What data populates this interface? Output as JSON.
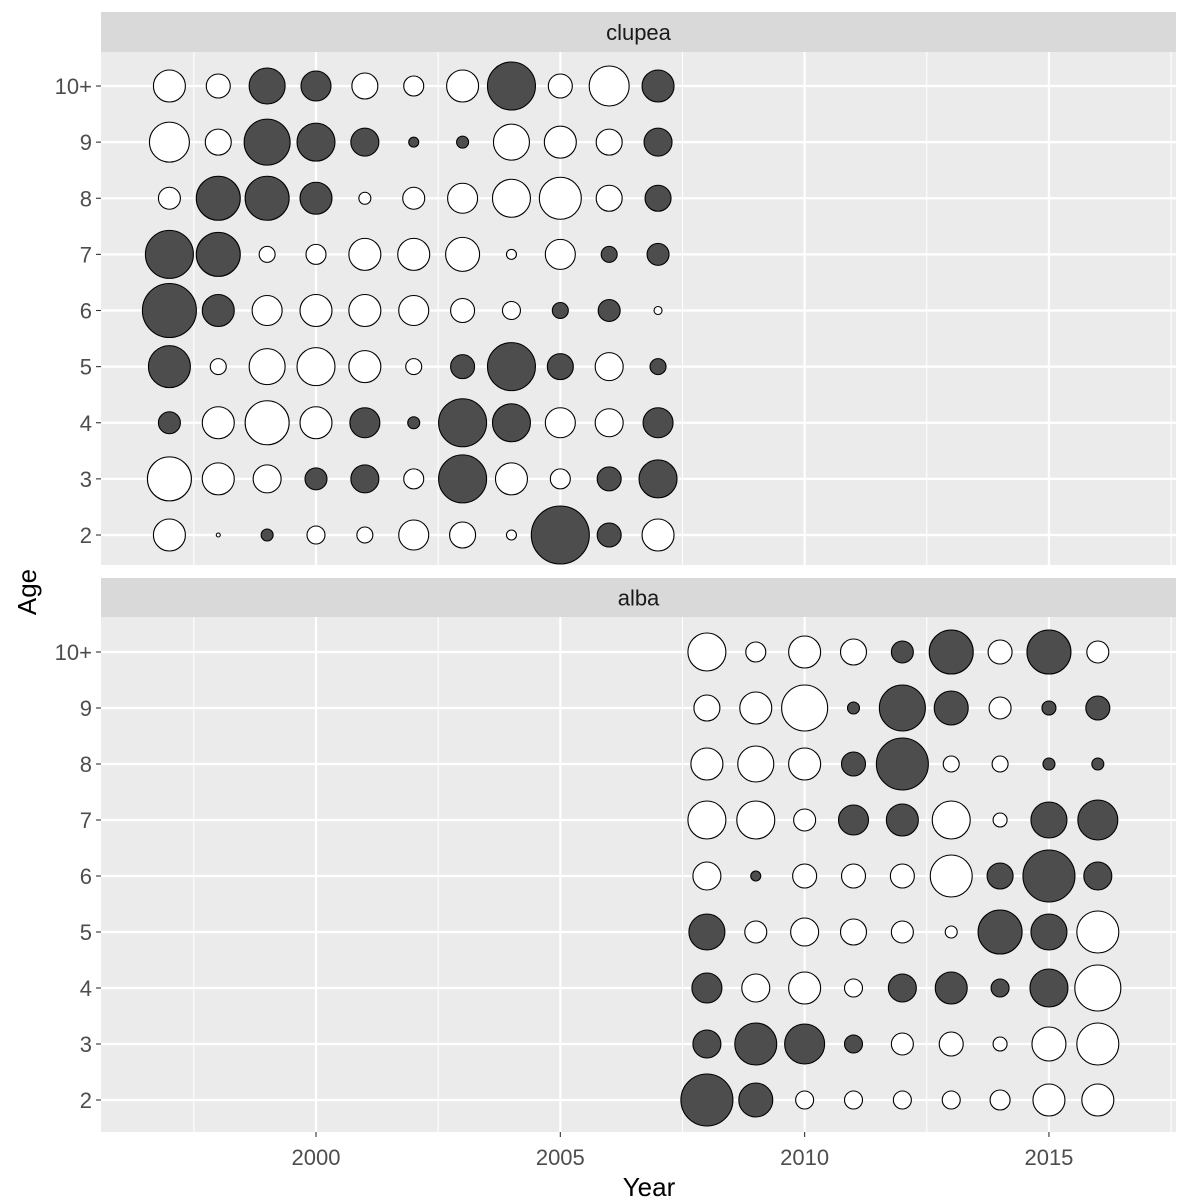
{
  "chart_data": {
    "type": "scatter",
    "subtype": "bubble",
    "xlabel": "Year",
    "ylabel": "Age",
    "xlim": [
      1995.6,
      2017.6
    ],
    "x_ticks": [
      2000,
      2005,
      2010,
      2015
    ],
    "x_minor": [
      1997.5,
      2002.5,
      2007.5,
      2012.5,
      2017.5
    ],
    "y_categories": [
      "2",
      "3",
      "4",
      "5",
      "6",
      "7",
      "8",
      "9",
      "10+"
    ],
    "colors": {
      "negative": "#4d4d4d",
      "positive": "#ffffff",
      "panel": "#ebebeb",
      "strip": "#d9d9d9"
    },
    "panels": [
      {
        "name": "clupea",
        "years": [
          1997,
          1998,
          1999,
          2000,
          2001,
          2002,
          2003,
          2004,
          2005,
          2006,
          2007
        ],
        "points": {
          "10+": [
            [
              16,
              1
            ],
            [
              12,
              1
            ],
            [
              18,
              -1
            ],
            [
              15,
              -1
            ],
            [
              13,
              1
            ],
            [
              10,
              1
            ],
            [
              16,
              1
            ],
            [
              24,
              -1
            ],
            [
              12,
              1
            ],
            [
              20,
              1
            ],
            [
              16,
              -1
            ]
          ],
          "9": [
            [
              20,
              1
            ],
            [
              13,
              1
            ],
            [
              23,
              -1
            ],
            [
              19,
              -1
            ],
            [
              14,
              -1
            ],
            [
              5,
              -1
            ],
            [
              6,
              -1
            ],
            [
              18,
              1
            ],
            [
              16,
              1
            ],
            [
              13,
              1
            ],
            [
              14,
              -1
            ]
          ],
          "8": [
            [
              11,
              1
            ],
            [
              22,
              -1
            ],
            [
              22,
              -1
            ],
            [
              16,
              -1
            ],
            [
              6,
              1
            ],
            [
              11,
              1
            ],
            [
              15,
              1
            ],
            [
              19,
              1
            ],
            [
              21,
              1
            ],
            [
              13,
              1
            ],
            [
              13,
              -1
            ]
          ],
          "7": [
            [
              24,
              -1
            ],
            [
              22,
              -1
            ],
            [
              8,
              1
            ],
            [
              10,
              1
            ],
            [
              16,
              1
            ],
            [
              16,
              1
            ],
            [
              17,
              1
            ],
            [
              5,
              1
            ],
            [
              15,
              1
            ],
            [
              8,
              -1
            ],
            [
              11,
              -1
            ]
          ],
          "6": [
            [
              27,
              -1
            ],
            [
              16,
              -1
            ],
            [
              15,
              1
            ],
            [
              16,
              1
            ],
            [
              16,
              1
            ],
            [
              15,
              1
            ],
            [
              12,
              1
            ],
            [
              9,
              1
            ],
            [
              8,
              -1
            ],
            [
              11,
              -1
            ],
            [
              4,
              1
            ]
          ],
          "5": [
            [
              21,
              -1
            ],
            [
              8,
              1
            ],
            [
              18,
              1
            ],
            [
              19,
              1
            ],
            [
              16,
              1
            ],
            [
              8,
              1
            ],
            [
              12,
              -1
            ],
            [
              24,
              -1
            ],
            [
              13,
              -1
            ],
            [
              14,
              1
            ],
            [
              8,
              -1
            ]
          ],
          "4": [
            [
              11,
              -1
            ],
            [
              16,
              1
            ],
            [
              22,
              1
            ],
            [
              16,
              1
            ],
            [
              15,
              -1
            ],
            [
              6,
              -1
            ],
            [
              24,
              -1
            ],
            [
              19,
              -1
            ],
            [
              15,
              1
            ],
            [
              14,
              1
            ],
            [
              15,
              -1
            ]
          ],
          "3": [
            [
              22,
              1
            ],
            [
              16,
              1
            ],
            [
              14,
              1
            ],
            [
              11,
              -1
            ],
            [
              14,
              -1
            ],
            [
              10,
              1
            ],
            [
              24,
              -1
            ],
            [
              16,
              1
            ],
            [
              10,
              1
            ],
            [
              12,
              -1
            ],
            [
              19,
              -1
            ]
          ],
          "2": [
            [
              16,
              1
            ],
            [
              2,
              1
            ],
            [
              6,
              -1
            ],
            [
              9,
              1
            ],
            [
              8,
              1
            ],
            [
              15,
              1
            ],
            [
              13,
              1
            ],
            [
              5,
              1
            ],
            [
              29,
              -1
            ],
            [
              12,
              -1
            ],
            [
              16,
              1
            ]
          ]
        }
      },
      {
        "name": "alba",
        "years": [
          2008,
          2009,
          2010,
          2011,
          2012,
          2013,
          2014,
          2015,
          2016
        ],
        "points": {
          "10+": [
            [
              19,
              1
            ],
            [
              10,
              1
            ],
            [
              16,
              1
            ],
            [
              13,
              1
            ],
            [
              11,
              -1
            ],
            [
              22,
              -1
            ],
            [
              12,
              1
            ],
            [
              22,
              -1
            ],
            [
              11,
              1
            ]
          ],
          "9": [
            [
              13,
              1
            ],
            [
              16,
              1
            ],
            [
              23,
              1
            ],
            [
              6,
              -1
            ],
            [
              23,
              -1
            ],
            [
              17,
              -1
            ],
            [
              11,
              1
            ],
            [
              7,
              -1
            ],
            [
              12,
              -1
            ]
          ],
          "8": [
            [
              16,
              1
            ],
            [
              18,
              1
            ],
            [
              16,
              1
            ],
            [
              12,
              -1
            ],
            [
              26,
              -1
            ],
            [
              8,
              1
            ],
            [
              8,
              1
            ],
            [
              6,
              -1
            ],
            [
              6,
              -1
            ]
          ],
          "7": [
            [
              19,
              1
            ],
            [
              19,
              1
            ],
            [
              11,
              1
            ],
            [
              15,
              -1
            ],
            [
              16,
              -1
            ],
            [
              19,
              1
            ],
            [
              7,
              1
            ],
            [
              18,
              -1
            ],
            [
              20,
              -1
            ]
          ],
          "6": [
            [
              14,
              1
            ],
            [
              5,
              -1
            ],
            [
              12,
              1
            ],
            [
              12,
              1
            ],
            [
              12,
              1
            ],
            [
              21,
              1
            ],
            [
              13,
              -1
            ],
            [
              26,
              -1
            ],
            [
              14,
              -1
            ]
          ],
          "5": [
            [
              18,
              -1
            ],
            [
              11,
              1
            ],
            [
              14,
              1
            ],
            [
              13,
              1
            ],
            [
              11,
              1
            ],
            [
              6,
              1
            ],
            [
              22,
              -1
            ],
            [
              18,
              -1
            ],
            [
              21,
              1
            ]
          ],
          "4": [
            [
              15,
              -1
            ],
            [
              14,
              1
            ],
            [
              16,
              1
            ],
            [
              9,
              1
            ],
            [
              14,
              -1
            ],
            [
              16,
              -1
            ],
            [
              9,
              -1
            ],
            [
              19,
              -1
            ],
            [
              23,
              1
            ]
          ],
          "3": [
            [
              14,
              -1
            ],
            [
              21,
              -1
            ],
            [
              20,
              -1
            ],
            [
              9,
              -1
            ],
            [
              11,
              1
            ],
            [
              12,
              1
            ],
            [
              7,
              1
            ],
            [
              17,
              1
            ],
            [
              21,
              1
            ]
          ],
          "2": [
            [
              26,
              -1
            ],
            [
              17,
              -1
            ],
            [
              9,
              1
            ],
            [
              9,
              1
            ],
            [
              9,
              1
            ],
            [
              9,
              1
            ],
            [
              10,
              1
            ],
            [
              16,
              1
            ],
            [
              16,
              1
            ]
          ]
        }
      }
    ]
  }
}
